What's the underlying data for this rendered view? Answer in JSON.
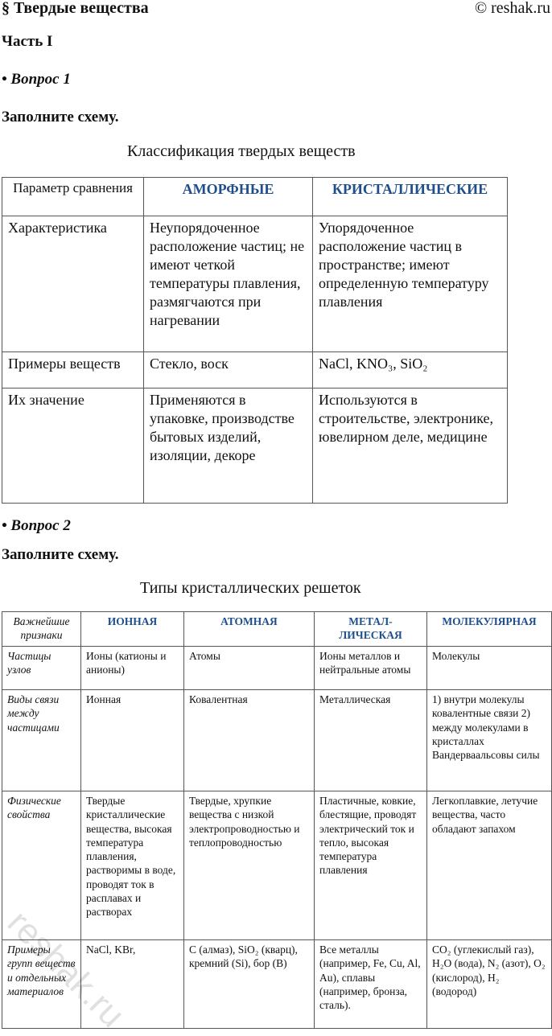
{
  "header": {
    "title": "§ Твердые вещества",
    "copyright": "© reshak.ru"
  },
  "part": "Часть I",
  "q1": {
    "label": "• Вопрос 1",
    "task": "Заполните схему.",
    "caption": "Классификация твердых веществ",
    "headers": [
      "Параметр сравнения",
      "АМОРФНЫЕ",
      "КРИСТАЛЛИЧЕСКИЕ"
    ],
    "rows": [
      [
        "Характеристика",
        "Неупорядоченное расположение частиц; не имеют четкой температуры плавления, размягчаются при нагревании",
        "Упорядоченное расположение частиц в пространстве; имеют определенную температуру плавления"
      ],
      [
        "Примеры веществ",
        "Стекло, воск",
        "NaCl, KNO₃, SiO₂"
      ],
      [
        "Их значение",
        "Применяются в упаковке, производстве бытовых изделий, изоляции, декоре",
        "Используются в строительстве, электронике, ювелирном деле, медицине"
      ]
    ]
  },
  "q2": {
    "label": "• Вопрос 2",
    "task": "Заполните схему.",
    "caption": "Типы кристаллических решеток",
    "headers": [
      "Важнейшие признаки",
      "ИОННАЯ",
      "АТОМНАЯ",
      "МЕТАЛ-ЛИЧЕСКАЯ",
      "МОЛЕКУЛЯРНАЯ"
    ],
    "rows": [
      [
        "Частицы узлов",
        "Ионы (катионы и анионы)",
        "Атомы",
        "Ионы металлов и нейтральные атомы",
        "Молекулы"
      ],
      [
        "Виды связи между частицами",
        "Ионная",
        "Ковалентная",
        "Металлическая",
        "1) внутри молекулы ковалентные связи 2) между молекулами в кристаллах Вандерваальсовы силы"
      ],
      [
        "Физические свойства",
        "Твердые кристаллические вещества, высокая температура плавления, растворимы в воде, проводят ток в расплавах и растворах",
        "Твердые, хрупкие вещества с низкой электропроводностью и теплопроводностью",
        "Пластичные, ковкие, блестящие, проводят электрический ток и тепло, высокая температура плавления",
        "Легкоплавкие, летучие вещества, часто обладают запахом"
      ],
      [
        "Примеры групп веществ и отдельных материалов",
        "NaCl, KBr,",
        "C (алмаз), SiO₂ (кварц), кремний (Si), бор (B)",
        "Все металлы (например, Fe, Cu, Al, Au), сплавы (например, бронза, сталь).",
        "CO₂ (углекислый газ), H₂O (вода), N₂ (азот), O₂ (кислород), H₂ (водород)"
      ]
    ]
  },
  "watermark": "reshak.ru"
}
